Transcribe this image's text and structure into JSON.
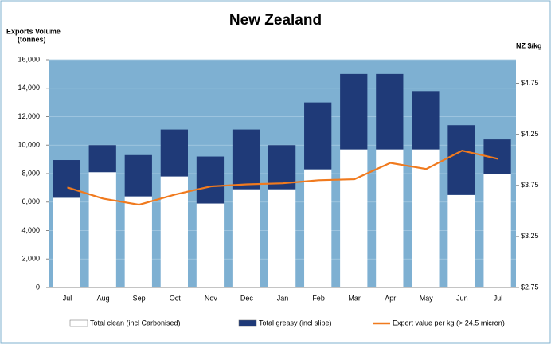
{
  "chart_data": {
    "type": "bar",
    "title": "New Zealand",
    "y_label": [
      "Exports Volume",
      "(tonnes)"
    ],
    "y2_label": "NZ $/kg",
    "categories": [
      "Jul",
      "Aug",
      "Sep",
      "Oct",
      "Nov",
      "Dec",
      "Jan",
      "Feb",
      "Mar",
      "Apr",
      "May",
      "Jun",
      "Jul"
    ],
    "stacked": true,
    "series": [
      {
        "name": "Total clean (incl Carbonised)",
        "type": "bar",
        "color": "#ffffff",
        "values": [
          6300,
          8100,
          6400,
          7800,
          5900,
          6900,
          6900,
          8300,
          9700,
          9700,
          9700,
          6500,
          8000
        ]
      },
      {
        "name": "Total greasy (incl slipe)",
        "type": "bar",
        "color": "#1f3a78",
        "values": [
          2650,
          1900,
          2900,
          3300,
          3300,
          4200,
          3100,
          4700,
          5300,
          5300,
          4100,
          4900,
          2400
        ]
      },
      {
        "name": "Export value per kg (> 24.5 micron)",
        "type": "line",
        "axis": "y2",
        "color": "#f07a1e",
        "values": [
          3.73,
          3.62,
          3.56,
          3.66,
          3.74,
          3.76,
          3.77,
          3.8,
          3.81,
          3.97,
          3.91,
          4.09,
          4.01
        ]
      }
    ],
    "ylim": [
      0,
      16000
    ],
    "yticks": [
      0,
      {
        "value": 2000,
        "label": "2,000"
      },
      {
        "value": 4000,
        "label": "4,000"
      },
      {
        "value": 6000,
        "label": "6,000"
      },
      {
        "value": 8000,
        "label": "8,000"
      },
      {
        "value": 10000,
        "label": "10,000"
      },
      {
        "value": 12000,
        "label": "12,000"
      },
      {
        "value": 14000,
        "label": "14,000"
      },
      {
        "value": 16000,
        "label": "16,000"
      }
    ],
    "y2lim": [
      2.75,
      4.98
    ],
    "y2ticks": [
      {
        "value": 2.75,
        "label": "$2.75"
      },
      {
        "value": 3.25,
        "label": "$3.25"
      },
      {
        "value": 3.75,
        "label": "$3.75"
      },
      {
        "value": 4.25,
        "label": "$4.25"
      },
      {
        "value": 4.75,
        "label": "$4.75"
      }
    ],
    "grid": true,
    "legend": "bottom"
  }
}
